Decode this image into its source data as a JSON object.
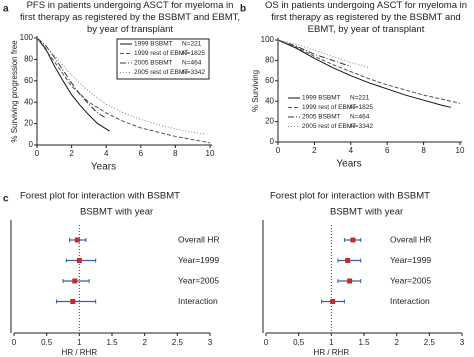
{
  "panel_labels": [
    "a",
    "b",
    "c"
  ],
  "chart_data": [
    {
      "type": "line",
      "title": "PFS in patients undergoing ASCT for myeloma in first therapy as registered by the BSBMT and EBMT, by year of transplant",
      "xlabel": "Years",
      "ylabel": "% Surviving progression free",
      "xlim": [
        0,
        10
      ],
      "xticks": [
        0,
        2,
        4,
        6,
        8,
        10
      ],
      "ylim": [
        0,
        100
      ],
      "yticks": [
        0,
        20,
        40,
        60,
        80,
        100
      ],
      "legend_position": "upper right",
      "series": [
        {
          "name": "1999 BSBMT",
          "n_label": "N=221",
          "color": "#111111",
          "dash": "none",
          "x": [
            0,
            0.5,
            1,
            1.5,
            2,
            2.5,
            3,
            3.5,
            4,
            4.2
          ],
          "values": [
            100,
            90,
            74,
            60,
            47,
            37,
            28,
            20,
            15,
            13
          ]
        },
        {
          "name": "1999 rest of EBMT",
          "n_label": "N=1825",
          "color": "#555555",
          "dash": "4,2",
          "x": [
            0,
            1,
            2,
            3,
            4,
            5,
            6,
            7,
            8,
            9,
            10
          ],
          "values": [
            100,
            78,
            55,
            40,
            30,
            22,
            16,
            12,
            8,
            5,
            2
          ]
        },
        {
          "name": "2005 BSBMT",
          "n_label": "N=464",
          "color": "#333333",
          "dash": "6,2,1,2",
          "x": [
            0,
            0.5,
            1,
            1.5,
            2,
            2.5,
            3,
            3.5,
            4
          ],
          "values": [
            100,
            93,
            82,
            70,
            58,
            47,
            38,
            30,
            25
          ]
        },
        {
          "name": "2005 rest of EBMT",
          "n_label": "N=3342",
          "color": "#888888",
          "dash": "1,2",
          "x": [
            0,
            1,
            2,
            3,
            4,
            5,
            6,
            7,
            8,
            9,
            9.8
          ],
          "values": [
            100,
            84,
            65,
            50,
            38,
            30,
            24,
            19,
            15,
            12,
            10
          ]
        }
      ]
    },
    {
      "type": "line",
      "title": "OS in patients undergoing ASCT for myeloma in first therapy as registered by the BSBMT and EBMT, by year of transplant",
      "xlabel": "Years",
      "ylabel": "% Surviving",
      "xlim": [
        0,
        10
      ],
      "xticks": [
        0,
        2,
        4,
        6,
        8,
        10
      ],
      "ylim": [
        0,
        100
      ],
      "yticks": [
        0,
        20,
        40,
        60,
        80,
        100
      ],
      "legend_position": "lower left",
      "series": [
        {
          "name": "1999 BSBMT",
          "n_label": "N=221",
          "color": "#111111",
          "dash": "none",
          "x": [
            0,
            1,
            2,
            3,
            4,
            5,
            6,
            7,
            8,
            9,
            9.5
          ],
          "values": [
            100,
            92,
            82,
            73,
            65,
            58,
            52,
            46,
            41,
            36,
            34
          ]
        },
        {
          "name": "1999 rest of EBMT",
          "n_label": "N=1825",
          "color": "#555555",
          "dash": "4,2",
          "x": [
            0,
            1,
            2,
            3,
            4,
            5,
            6,
            7,
            8,
            9,
            10
          ],
          "values": [
            100,
            93,
            84,
            76,
            69,
            62,
            56,
            51,
            46,
            42,
            38
          ]
        },
        {
          "name": "2005 BSBMT",
          "n_label": "N=464",
          "color": "#333333",
          "dash": "6,2,1,2",
          "x": [
            0,
            1,
            2,
            3,
            4
          ],
          "values": [
            100,
            94,
            86,
            80,
            74
          ]
        },
        {
          "name": "2005 rest of EBMT",
          "n_label": "N=3342",
          "color": "#888888",
          "dash": "1,2",
          "x": [
            0,
            1,
            2,
            3,
            4,
            5
          ],
          "values": [
            100,
            96,
            90,
            84,
            78,
            73
          ]
        }
      ]
    },
    {
      "type": "forest",
      "title": "Forest plot for interaction with BSBMT",
      "subtitle": "BSBMT with year",
      "xlabel": "HR / RHR",
      "xlim": [
        0,
        3
      ],
      "xticks": [
        0,
        0.5,
        1,
        1.5,
        2,
        2.5,
        3
      ],
      "reference": 1,
      "point_color": "#c8282b",
      "ci_color": "#3a5fa8",
      "categories": [
        "Overall HR",
        "Year=1999",
        "Year=2005",
        "Interaction"
      ],
      "values": [
        0.97,
        1.0,
        0.93,
        0.9
      ],
      "lower": [
        0.85,
        0.8,
        0.75,
        0.65
      ],
      "upper": [
        1.1,
        1.25,
        1.15,
        1.25
      ]
    },
    {
      "type": "forest",
      "title": "Forest plot for interaction with BSBMT",
      "subtitle": "BSBMT with year",
      "xlabel": "HR / RHR",
      "xlim": [
        0,
        3
      ],
      "xticks": [
        0,
        0.5,
        1,
        1.5,
        2,
        2.5,
        3
      ],
      "reference": 1,
      "point_color": "#c8282b",
      "ci_color": "#3a5fa8",
      "categories": [
        "Overall HR",
        "Year=1999",
        "Year=2005",
        "Interaction"
      ],
      "values": [
        1.33,
        1.25,
        1.28,
        1.02
      ],
      "lower": [
        1.2,
        1.1,
        1.1,
        0.85
      ],
      "upper": [
        1.45,
        1.45,
        1.45,
        1.2
      ]
    }
  ]
}
